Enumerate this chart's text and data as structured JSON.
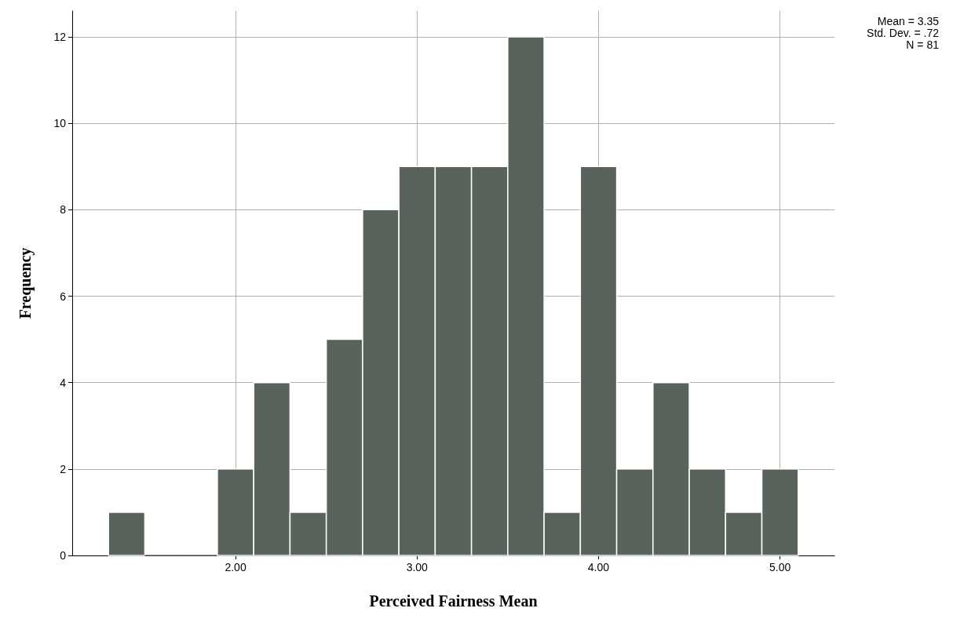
{
  "chart_data": {
    "type": "histogram",
    "xlabel": "Perceived Fairness Mean",
    "ylabel": "Frequency",
    "bins": [
      1.3,
      1.5,
      1.7,
      1.9,
      2.1,
      2.3,
      2.5,
      2.7,
      2.9,
      3.1,
      3.3,
      3.5,
      3.7,
      3.9,
      4.1,
      4.3,
      4.5,
      4.7,
      4.9,
      5.1
    ],
    "values": [
      1,
      0,
      0,
      2,
      4,
      1,
      5,
      8,
      9,
      9,
      9,
      12,
      1,
      9,
      2,
      4,
      2,
      1,
      2
    ],
    "color": "#5a625c",
    "xlim": [
      1.1,
      5.3
    ],
    "xticks": [
      {
        "value": 2,
        "label": "2.00"
      },
      {
        "value": 3,
        "label": "3.00"
      },
      {
        "value": 4,
        "label": "4.00"
      },
      {
        "value": 5,
        "label": "5.00"
      }
    ],
    "ylim": [
      0,
      12.6
    ],
    "yticks": [
      0,
      2,
      4,
      6,
      8,
      10,
      12
    ],
    "grid": true,
    "annotations": [
      "Mean = 3.35",
      "Std. Dev. = .72",
      "N = 81"
    ]
  }
}
